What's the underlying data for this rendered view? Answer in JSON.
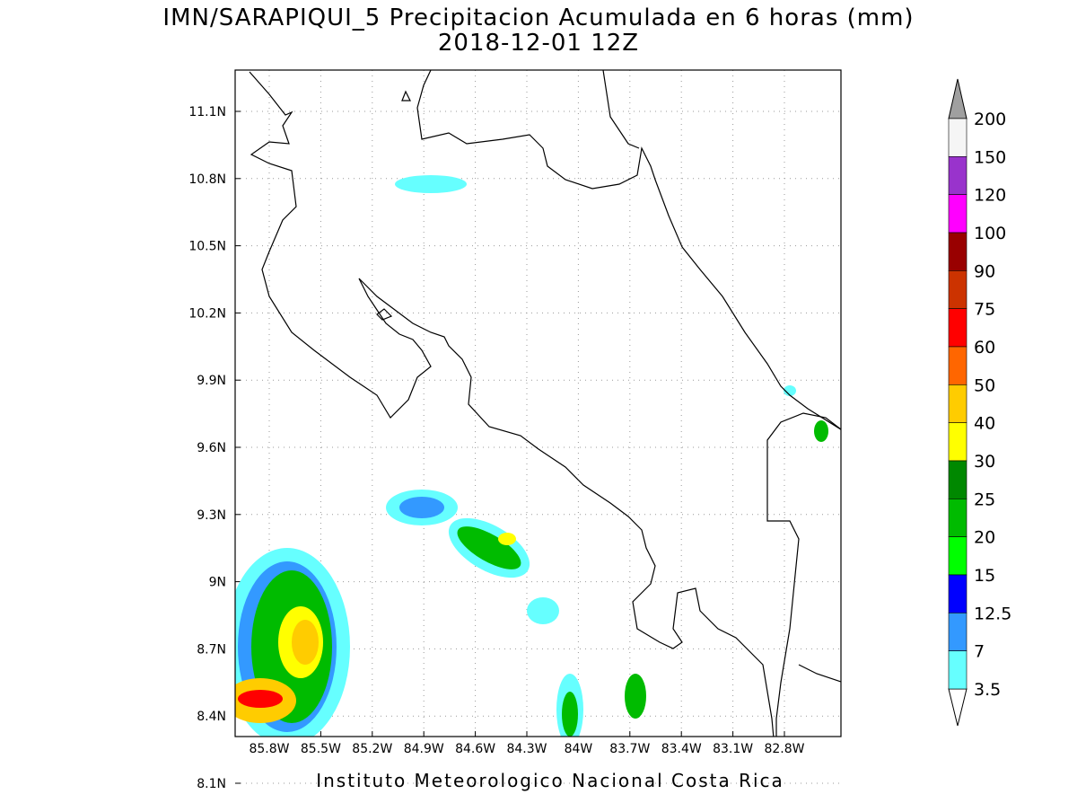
{
  "header": {
    "title": "IMN/SARAPIQUI_5 Precipitacion Acumulada en 6 horas (mm)",
    "subtitle": "2018-12-01 12Z"
  },
  "map": {
    "lon_labels": [
      "85.8W",
      "85.5W",
      "85.2W",
      "84.9W",
      "84.6W",
      "84.3W",
      "84W",
      "83.7W",
      "83.4W",
      "83.1W",
      "82.8W"
    ],
    "lat_labels": [
      "11.1N",
      "10.8N",
      "10.5N",
      "10.2N",
      "9.9N",
      "9.6N",
      "9.3N",
      "9N",
      "8.7N",
      "8.4N",
      "8.1N"
    ]
  },
  "colorbar": {
    "labels": [
      "200",
      "150",
      "120",
      "100",
      "90",
      "75",
      "60",
      "50",
      "40",
      "30",
      "25",
      "20",
      "15",
      "12.5",
      "7",
      "3.5"
    ],
    "colors": [
      "#f5f5f5",
      "#9933cc",
      "#ff00ff",
      "#990000",
      "#cc3300",
      "#ff0000",
      "#ff6600",
      "#ffcc00",
      "#ffff00",
      "#008800",
      "#00bb00",
      "#00ff00",
      "#0000ff",
      "#3399ff",
      "#66ffff"
    ],
    "over_color": "#a0a0a0",
    "under_color": "#ffffff"
  },
  "footer": {
    "credit": "Instituto Meteorologico Nacional Costa Rica"
  }
}
